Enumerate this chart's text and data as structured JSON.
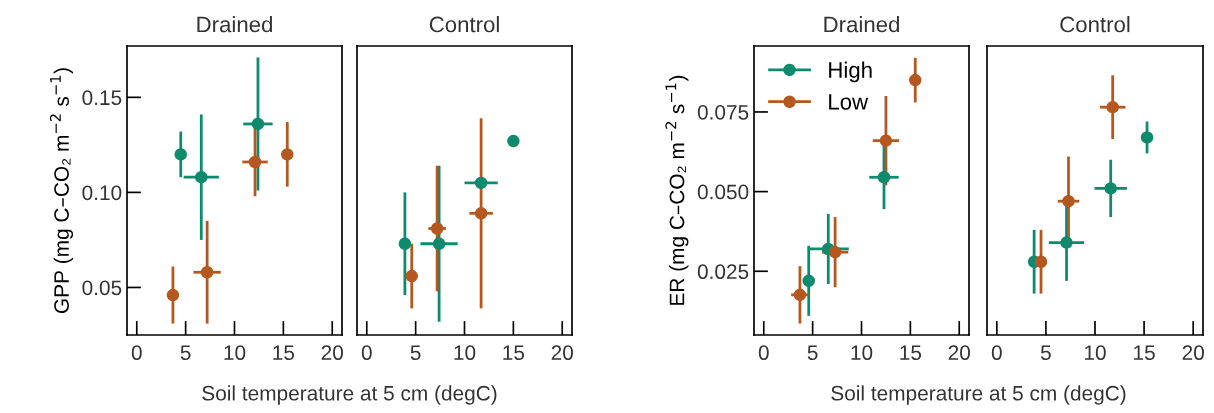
{
  "chart_data": [
    {
      "type": "scatter",
      "title": "Drained",
      "ylabel": "GPP (mg C–CO₂ m$^{−2}$ s$^{−1}$)",
      "xlabel": "Soil temperature at 5 cm (degC)",
      "xlim": [
        -1,
        21
      ],
      "xticks": [
        0,
        5,
        10,
        15,
        20
      ],
      "ylim": [
        0.025,
        0.177
      ],
      "yticks": [
        {
          "value": 0.05,
          "label": "0.05"
        },
        {
          "value": 0.1,
          "label": "0.10"
        },
        {
          "value": 0.15,
          "label": "0.15"
        }
      ],
      "marker": "circle",
      "grid": false,
      "legend": false,
      "series": [
        {
          "color": "#0e8a6e",
          "x": [
            4.5,
            6.6,
            12.4
          ],
          "values": [
            0.12,
            0.108,
            0.136
          ],
          "errors": [
            0.012,
            0.033,
            0.035
          ],
          "xerrors": [
            null,
            1.8,
            1.5
          ]
        },
        {
          "color": "#b5581f",
          "x": [
            3.7,
            7.2,
            12.1,
            15.4
          ],
          "values": [
            0.046,
            0.058,
            0.116,
            0.12
          ],
          "errors": [
            0.015,
            0.027,
            0.018,
            0.017
          ],
          "xerrors": [
            null,
            1.4,
            1.3,
            null
          ]
        }
      ]
    },
    {
      "type": "scatter",
      "title": "Control",
      "xlim": [
        -1,
        21
      ],
      "xticks": [
        0,
        5,
        10,
        15,
        20
      ],
      "ylim": [
        0.025,
        0.177
      ],
      "tick_labels": "x",
      "marker": "circle",
      "grid": false,
      "legend": false,
      "series": [
        {
          "color": "#0e8a6e",
          "x": [
            3.9,
            7.4,
            11.7,
            15.0
          ],
          "values": [
            0.073,
            0.073,
            0.105,
            0.127
          ],
          "errors": [
            0.027,
            0.041,
            null,
            null
          ],
          "xerrors": [
            null,
            1.9,
            1.7,
            null
          ]
        },
        {
          "color": "#b5581f",
          "x": [
            4.6,
            7.2,
            11.7
          ],
          "values": [
            0.056,
            0.081,
            0.089
          ],
          "errors": [
            0.017,
            0.033,
            0.05
          ],
          "xerrors": [
            null,
            0.9,
            1.2
          ]
        }
      ]
    },
    {
      "type": "scatter",
      "title": "Drained",
      "ylabel": "ER (mg C–CO₂ m$^{−2}$ s$^{−1}$)",
      "xlabel": "Soil temperature at 5 cm (degC)",
      "xlim": [
        -1,
        21
      ],
      "xticks": [
        0,
        5,
        10,
        15,
        20
      ],
      "ylim": [
        0.005,
        0.0957
      ],
      "yticks": [
        {
          "value": 0.025,
          "label": "0.025"
        },
        {
          "value": 0.05,
          "label": "0.050"
        },
        {
          "value": 0.075,
          "label": "0.075"
        }
      ],
      "marker": "circle",
      "grid": false,
      "legend": "top left",
      "series": [
        {
          "name": "High",
          "color": "#0e8a6e",
          "x": [
            4.6,
            6.6,
            12.3
          ],
          "values": [
            0.022,
            0.032,
            0.0545
          ],
          "errors": [
            0.011,
            0.011,
            0.01
          ],
          "xerrors": [
            null,
            2.1,
            1.5
          ]
        },
        {
          "name": "Low",
          "color": "#b5581f",
          "x": [
            3.7,
            7.3,
            12.5,
            15.5
          ],
          "values": [
            0.0176,
            0.031,
            0.066,
            0.085
          ],
          "errors": [
            0.009,
            0.011,
            0.014,
            0.007
          ],
          "xerrors": [
            0.9,
            1.35,
            1.35,
            null
          ]
        }
      ]
    },
    {
      "type": "scatter",
      "title": "Control",
      "xlim": [
        -1,
        21
      ],
      "xticks": [
        0,
        5,
        10,
        15,
        20
      ],
      "ylim": [
        0.005,
        0.0957
      ],
      "tick_labels": "x",
      "marker": "circle",
      "grid": false,
      "legend": false,
      "series": [
        {
          "color": "#0e8a6e",
          "x": [
            3.8,
            7.1,
            11.6,
            15.3
          ],
          "values": [
            0.028,
            0.034,
            0.051,
            0.067
          ],
          "errors": [
            0.01,
            0.012,
            0.009,
            0.005
          ],
          "xerrors": [
            null,
            1.8,
            1.65,
            null
          ]
        },
        {
          "color": "#b5581f",
          "x": [
            4.5,
            7.3,
            11.8
          ],
          "values": [
            0.028,
            0.047,
            0.0765
          ],
          "errors": [
            0.01,
            0.014,
            0.01
          ],
          "xerrors": [
            null,
            1.1,
            1.3
          ]
        }
      ]
    }
  ]
}
